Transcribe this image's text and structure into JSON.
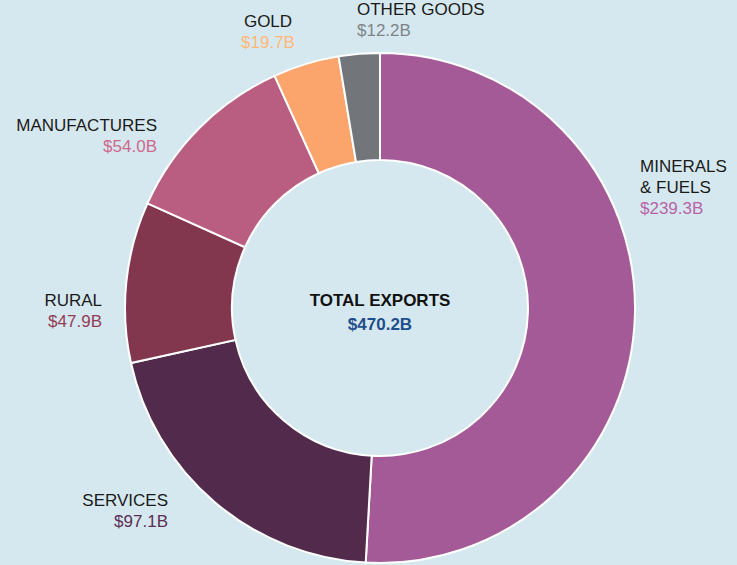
{
  "chart_data": {
    "type": "pie",
    "title": "TOTAL EXPORTS",
    "total": {
      "value": 470.2,
      "label": "$470.2B"
    },
    "categories": [
      "MINERALS\n& FUELS",
      "SERVICES",
      "RURAL",
      "MANUFACTURES",
      "GOLD",
      "OTHER GOODS"
    ],
    "values": [
      239.3,
      97.1,
      47.9,
      54.0,
      19.7,
      12.2
    ],
    "value_labels": [
      "$239.3B",
      "$97.1B",
      "$47.9B",
      "$54.0B",
      "$19.7B",
      "$12.2B"
    ],
    "colors": [
      "#a45a96",
      "#522a4c",
      "#83374f",
      "#b95e80",
      "#fba56c",
      "#72767b"
    ],
    "data_labels": true
  }
}
